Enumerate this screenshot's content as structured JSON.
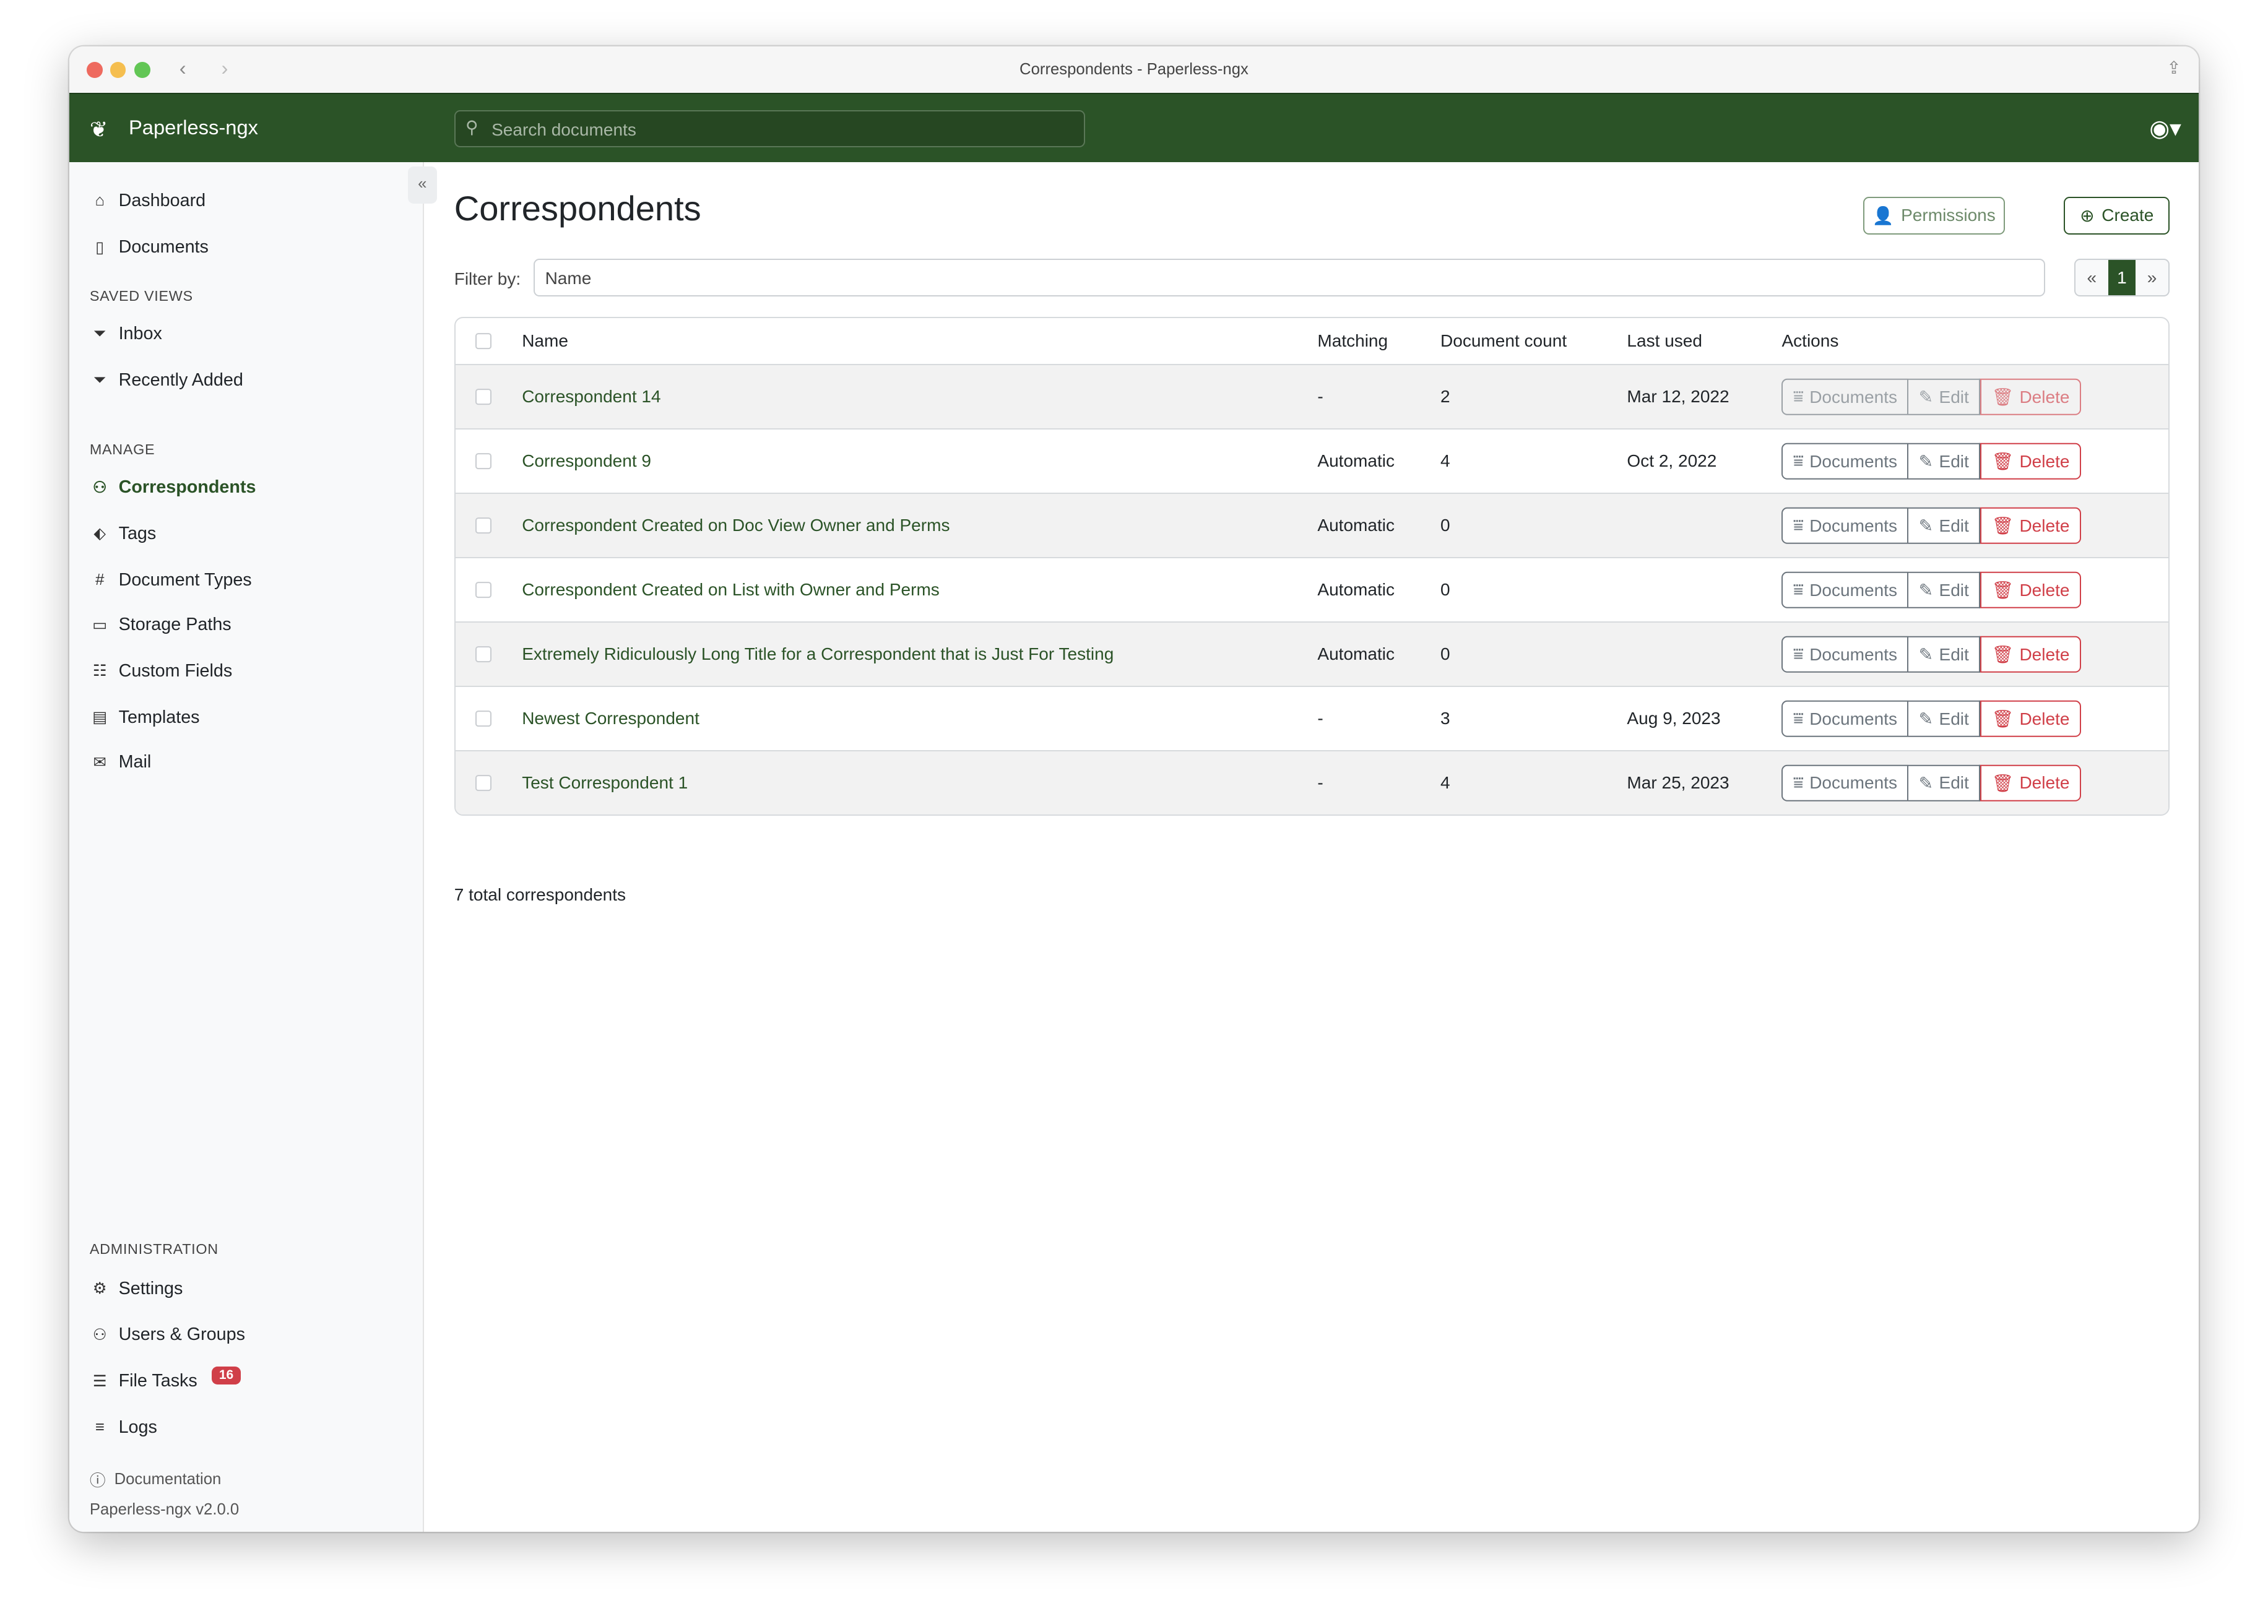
{
  "window": {
    "title": "Correspondents - Paperless-ngx"
  },
  "navbar": {
    "brand": "Paperless-ngx",
    "search_placeholder": "Search documents"
  },
  "sidebar": {
    "items": [
      {
        "label": "Dashboard",
        "icon": "house-icon"
      },
      {
        "label": "Documents",
        "icon": "files-icon"
      }
    ],
    "saved_views_heading": "SAVED VIEWS",
    "saved_views": [
      {
        "label": "Inbox",
        "icon": "funnel-icon"
      },
      {
        "label": "Recently Added",
        "icon": "funnel-icon"
      }
    ],
    "manage_heading": "MANAGE",
    "manage": [
      {
        "label": "Correspondents",
        "icon": "person-icon",
        "active": true
      },
      {
        "label": "Tags",
        "icon": "tags-icon"
      },
      {
        "label": "Document Types",
        "icon": "hash-icon"
      },
      {
        "label": "Storage Paths",
        "icon": "folder-icon"
      },
      {
        "label": "Custom Fields",
        "icon": "ui-radios-icon"
      },
      {
        "label": "Templates",
        "icon": "file-text-icon"
      },
      {
        "label": "Mail",
        "icon": "envelope-icon"
      }
    ],
    "admin_heading": "ADMINISTRATION",
    "admin": [
      {
        "label": "Settings",
        "icon": "gear-icon"
      },
      {
        "label": "Users & Groups",
        "icon": "people-icon"
      },
      {
        "label": "File Tasks",
        "icon": "list-task-icon",
        "badge": "16"
      },
      {
        "label": "Logs",
        "icon": "text-left-icon"
      }
    ],
    "documentation": "Documentation",
    "version": "Paperless-ngx v2.0.0"
  },
  "main": {
    "title": "Correspondents",
    "permissions_label": "Permissions",
    "create_label": "Create",
    "filter_label": "Filter by:",
    "filter_placeholder": "Name",
    "pagination": {
      "prev": "«",
      "current": "1",
      "next": "»"
    },
    "columns": [
      "Name",
      "Matching",
      "Document count",
      "Last used",
      "Actions"
    ],
    "action_labels": {
      "documents": "Documents",
      "edit": "Edit",
      "delete": "Delete"
    },
    "rows": [
      {
        "name": "Correspondent 14",
        "matching": "-",
        "count": "2",
        "last_used": "Mar 12, 2022",
        "disabled": true
      },
      {
        "name": "Correspondent 9",
        "matching": "Automatic",
        "count": "4",
        "last_used": "Oct 2, 2022"
      },
      {
        "name": "Correspondent Created on Doc View Owner and Perms",
        "matching": "Automatic",
        "count": "0",
        "last_used": ""
      },
      {
        "name": "Correspondent Created on List with Owner and Perms",
        "matching": "Automatic",
        "count": "0",
        "last_used": ""
      },
      {
        "name": "Extremely Ridiculously Long Title for a Correspondent that is Just For Testing",
        "matching": "Automatic",
        "count": "0",
        "last_used": ""
      },
      {
        "name": "Newest Correspondent",
        "matching": "-",
        "count": "3",
        "last_used": "Aug 9, 2023"
      },
      {
        "name": "Test Correspondent 1",
        "matching": "-",
        "count": "4",
        "last_used": "Mar 25, 2023"
      }
    ],
    "total": "7 total correspondents"
  },
  "colors": {
    "brand": "#2b5327",
    "danger": "#d03f48",
    "sidebar_bg": "#f8f9fa"
  }
}
